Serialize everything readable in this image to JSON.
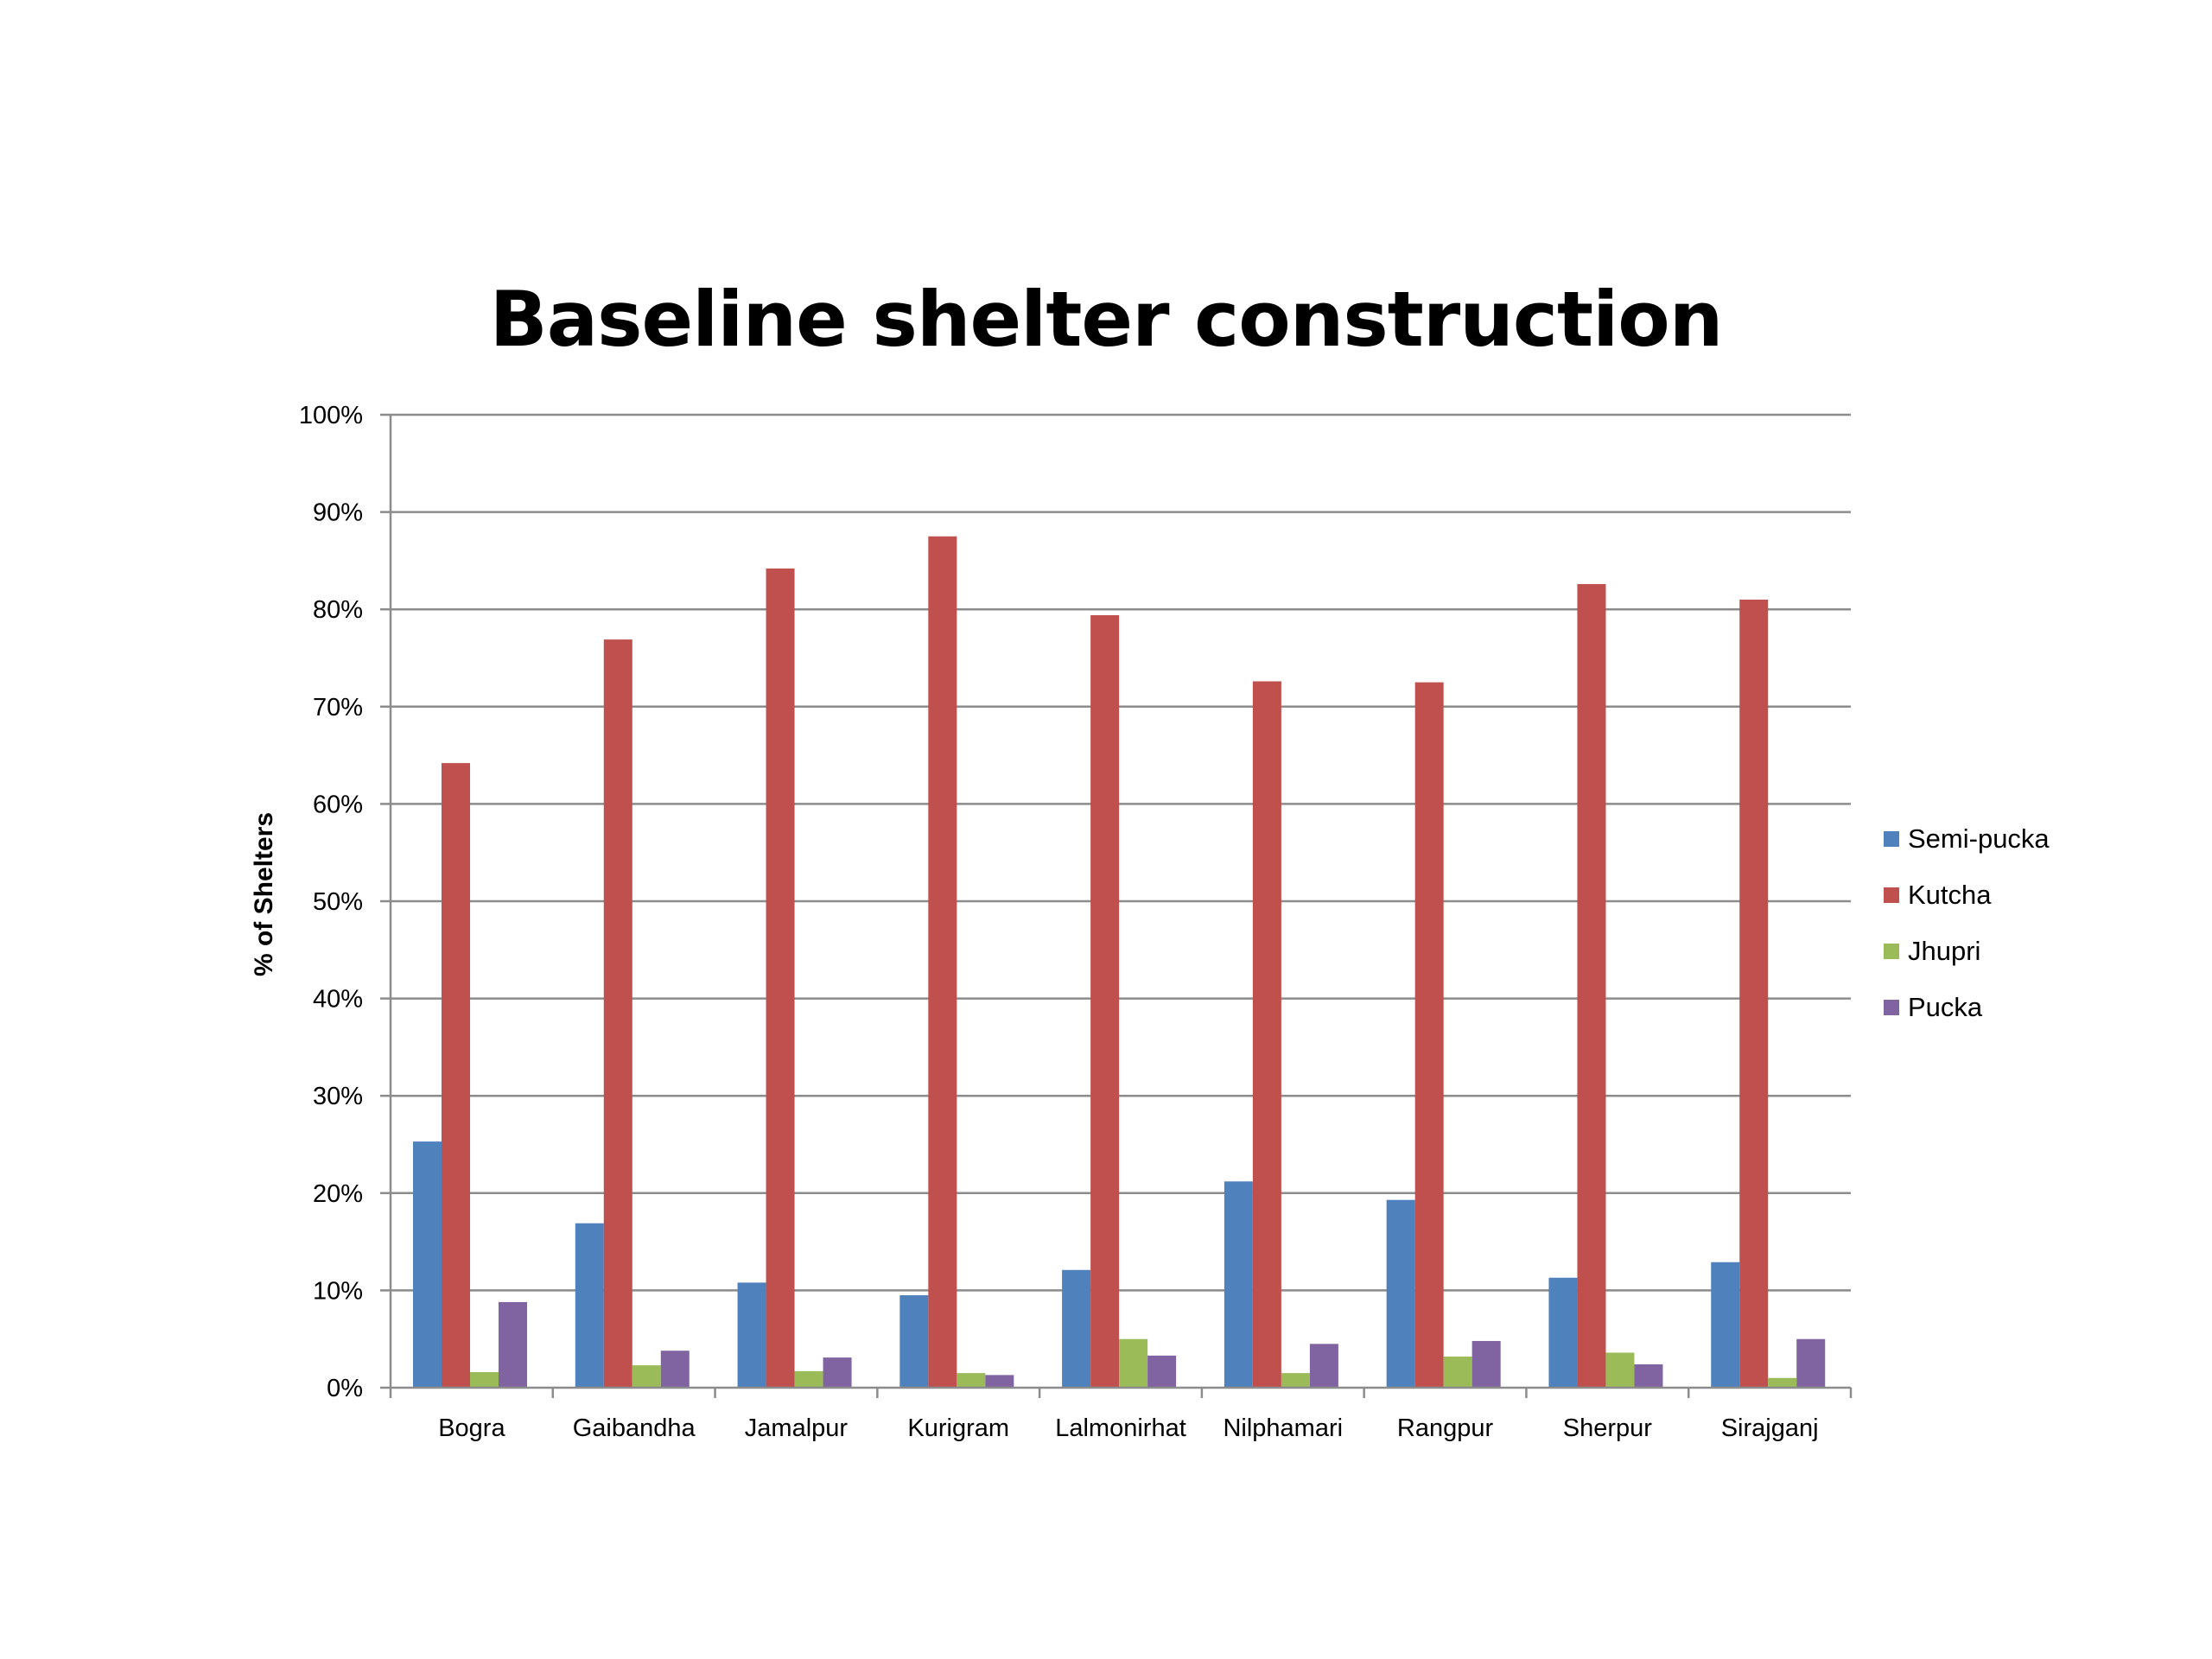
{
  "chart_data": {
    "type": "bar",
    "title": "Baseline shelter construction",
    "xlabel": "",
    "ylabel": "% of Shelters",
    "ylim": [
      0,
      100
    ],
    "y_ticks": [
      "0%",
      "10%",
      "20%",
      "30%",
      "40%",
      "50%",
      "60%",
      "70%",
      "80%",
      "90%",
      "100%"
    ],
    "y_tick_values": [
      0,
      10,
      20,
      30,
      40,
      50,
      60,
      70,
      80,
      90,
      100
    ],
    "grid": true,
    "legend_position": "right",
    "categories": [
      "Bogra",
      "Gaibandha",
      "Jamalpur",
      "Kurigram",
      "Lalmonirhat",
      "Nilphamari",
      "Rangpur",
      "Sherpur",
      "Sirajganj"
    ],
    "series": [
      {
        "name": "Semi-pucka",
        "color": "#4f81bd",
        "values": [
          25.3,
          16.9,
          10.8,
          9.5,
          12.1,
          21.2,
          19.3,
          11.3,
          12.9
        ]
      },
      {
        "name": "Kutcha",
        "color": "#c0504d",
        "values": [
          64.2,
          76.9,
          84.2,
          87.5,
          79.4,
          72.6,
          72.5,
          82.6,
          81.0
        ]
      },
      {
        "name": "Jhupri",
        "color": "#9bbb59",
        "values": [
          1.6,
          2.3,
          1.7,
          1.5,
          5.0,
          1.5,
          3.2,
          3.6,
          1.0
        ]
      },
      {
        "name": "Pucka",
        "color": "#8064a2",
        "values": [
          8.8,
          3.8,
          3.1,
          1.3,
          3.3,
          4.5,
          4.8,
          2.4,
          5.0
        ]
      }
    ]
  }
}
